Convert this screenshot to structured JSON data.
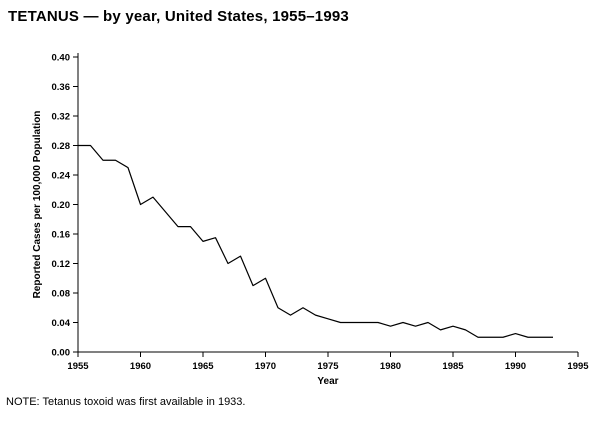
{
  "title": "TETANUS — by year, United States, 1955–1993",
  "note": "NOTE: Tetanus toxoid was first available in 1933.",
  "chart_data": {
    "type": "line",
    "title": "TETANUS — by year, United States, 1955–1993",
    "xlabel": "Year",
    "ylabel": "Reported Cases per 100,000 Population",
    "xlim": [
      1955,
      1995
    ],
    "ylim": [
      0.0,
      0.4
    ],
    "x_ticks": [
      1955,
      1960,
      1965,
      1970,
      1975,
      1980,
      1985,
      1990,
      1995
    ],
    "y_ticks": [
      0.0,
      0.04,
      0.08,
      0.12,
      0.16,
      0.2,
      0.24,
      0.28,
      0.32,
      0.36,
      0.4
    ],
    "grid": false,
    "legend": false,
    "line_color": "#000000",
    "x": [
      1955,
      1956,
      1957,
      1958,
      1959,
      1960,
      1961,
      1962,
      1963,
      1964,
      1965,
      1966,
      1967,
      1968,
      1969,
      1970,
      1971,
      1972,
      1973,
      1974,
      1975,
      1976,
      1977,
      1978,
      1979,
      1980,
      1981,
      1982,
      1983,
      1984,
      1985,
      1986,
      1987,
      1988,
      1989,
      1990,
      1991,
      1992,
      1993
    ],
    "values": [
      0.28,
      0.28,
      0.26,
      0.26,
      0.25,
      0.2,
      0.21,
      0.19,
      0.17,
      0.17,
      0.15,
      0.155,
      0.12,
      0.13,
      0.09,
      0.1,
      0.06,
      0.05,
      0.06,
      0.05,
      0.045,
      0.04,
      0.04,
      0.04,
      0.04,
      0.035,
      0.04,
      0.035,
      0.04,
      0.03,
      0.035,
      0.03,
      0.02,
      0.02,
      0.02,
      0.025,
      0.02,
      0.02,
      0.02
    ]
  }
}
